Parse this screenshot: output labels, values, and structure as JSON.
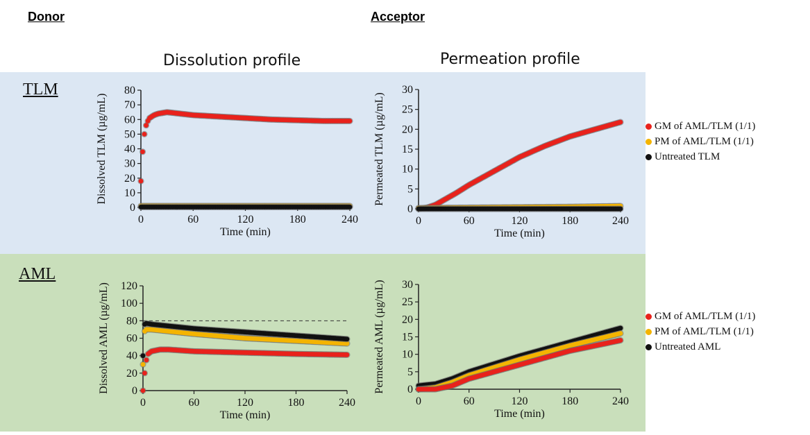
{
  "headers": {
    "donor": "Donor",
    "acceptor": "Acceptor"
  },
  "column_titles": {
    "dissolution": "Dissolution profile",
    "permeation": "Permeation profile"
  },
  "rows": [
    {
      "label": "TLM",
      "band_color": "#dce7f3"
    },
    {
      "label": "AML",
      "band_color": "#c9dfbb"
    }
  ],
  "legends": [
    {
      "items": [
        {
          "label": "GM of AML/TLM (1/1)",
          "color": "#e8221c"
        },
        {
          "label": "PM of AML/TLM (1/1)",
          "color": "#f4b400"
        },
        {
          "label": "Untreated TLM",
          "color": "#111111"
        }
      ]
    },
    {
      "items": [
        {
          "label": "GM of AML/TLM (1/1)",
          "color": "#e8221c"
        },
        {
          "label": "PM of AML/TLM (1/1)",
          "color": "#f4b400"
        },
        {
          "label": "Untreated AML",
          "color": "#111111"
        }
      ]
    }
  ],
  "chart_data": [
    {
      "id": "tlm-dissolution",
      "type": "scatter",
      "xlabel": "Time (min)",
      "ylabel": "Dissolved TLM (µg/mL)",
      "xlim": [
        0,
        240
      ],
      "ylim": [
        0,
        80
      ],
      "xticks": [
        0,
        60,
        120,
        180,
        240
      ],
      "yticks": [
        0,
        10,
        20,
        30,
        40,
        50,
        60,
        70,
        80
      ],
      "series": [
        {
          "color": "#e8221c",
          "x": [
            0,
            2,
            4,
            6,
            8,
            10,
            15,
            20,
            30,
            45,
            60,
            90,
            120,
            150,
            180,
            210,
            240
          ],
          "y": [
            18,
            38,
            50,
            56,
            59,
            61,
            63,
            64,
            65,
            64,
            63,
            62,
            61,
            60,
            59.5,
            59,
            59
          ]
        },
        {
          "color": "#f4b400",
          "x": [
            0,
            60,
            120,
            180,
            240
          ],
          "y": [
            1,
            1,
            1,
            1,
            1
          ]
        },
        {
          "color": "#111111",
          "x": [
            0,
            60,
            120,
            180,
            240
          ],
          "y": [
            0.3,
            0.3,
            0.3,
            0.3,
            0.3
          ]
        }
      ]
    },
    {
      "id": "tlm-permeation",
      "type": "scatter",
      "xlabel": "Time (min)",
      "ylabel": "Permeated TLM (µg/mL)",
      "xlim": [
        0,
        240
      ],
      "ylim": [
        0,
        30
      ],
      "xticks": [
        0,
        60,
        120,
        180,
        240
      ],
      "yticks": [
        0,
        5,
        10,
        15,
        20,
        25,
        30
      ],
      "series": [
        {
          "color": "#e8221c",
          "x": [
            0,
            10,
            20,
            30,
            45,
            60,
            90,
            120,
            150,
            180,
            210,
            240
          ],
          "y": [
            0,
            0.3,
            1,
            2.2,
            4,
            6,
            9.5,
            13,
            15.8,
            18.2,
            20,
            21.8
          ]
        },
        {
          "color": "#f4b400",
          "x": [
            0,
            60,
            120,
            180,
            240
          ],
          "y": [
            0.2,
            0.3,
            0.4,
            0.5,
            0.7
          ]
        },
        {
          "color": "#111111",
          "x": [
            0,
            60,
            120,
            180,
            240
          ],
          "y": [
            0,
            0,
            0,
            0,
            0
          ]
        }
      ]
    },
    {
      "id": "aml-dissolution",
      "type": "scatter",
      "xlabel": "Time (min)",
      "ylabel": "Dissolved AML (µg/mL)",
      "xlim": [
        0,
        240
      ],
      "ylim": [
        0,
        120
      ],
      "xticks": [
        0,
        60,
        120,
        180,
        240
      ],
      "yticks": [
        0,
        20,
        40,
        60,
        80,
        100,
        120
      ],
      "reference_line": 80,
      "series": [
        {
          "color": "#e8221c",
          "x": [
            0,
            2,
            4,
            6,
            10,
            15,
            20,
            30,
            60,
            120,
            180,
            240
          ],
          "y": [
            0,
            20,
            35,
            42,
            45,
            46,
            47,
            47,
            45,
            43.5,
            42,
            41
          ]
        },
        {
          "color": "#f4b400",
          "x": [
            0,
            1,
            2,
            4,
            10,
            30,
            60,
            120,
            180,
            240
          ],
          "y": [
            30,
            60,
            68,
            70,
            70,
            68,
            65,
            60,
            57,
            54
          ]
        },
        {
          "color": "#111111",
          "x": [
            0,
            1,
            2,
            4,
            10,
            30,
            60,
            120,
            180,
            240
          ],
          "y": [
            40,
            70,
            76,
            77,
            76,
            74,
            71,
            67,
            63,
            59
          ]
        }
      ]
    },
    {
      "id": "aml-permeation",
      "type": "scatter",
      "xlabel": "Time (min)",
      "ylabel": "Permeated AML (µg/mL)",
      "xlim": [
        0,
        240
      ],
      "ylim": [
        0,
        30
      ],
      "xticks": [
        0,
        60,
        120,
        180,
        240
      ],
      "yticks": [
        0,
        5,
        10,
        15,
        20,
        25,
        30
      ],
      "series": [
        {
          "color": "#111111",
          "x": [
            0,
            20,
            40,
            60,
            120,
            180,
            240
          ],
          "y": [
            1,
            1.5,
            3,
            5,
            9.5,
            13.5,
            17.5
          ]
        },
        {
          "color": "#f4b400",
          "x": [
            0,
            20,
            40,
            60,
            120,
            180,
            240
          ],
          "y": [
            0,
            0.5,
            2,
            4,
            8.5,
            12.5,
            16
          ]
        },
        {
          "color": "#e8221c",
          "x": [
            0,
            20,
            40,
            60,
            120,
            180,
            240
          ],
          "y": [
            0,
            0,
            1,
            3,
            7,
            11,
            14
          ]
        }
      ]
    }
  ]
}
